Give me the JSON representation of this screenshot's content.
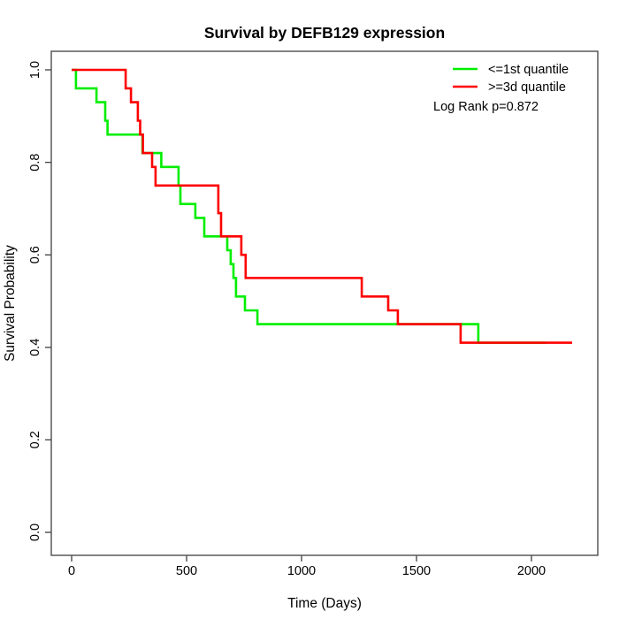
{
  "chart_data": {
    "type": "line",
    "subtype": "kaplan_meier_step",
    "title": "Survival by DEFB129 expression",
    "xlabel": "Time (Days)",
    "ylabel": "Survival Probability",
    "xlim": [
      0,
      2200
    ],
    "ylim": [
      0.0,
      1.0
    ],
    "grid": false,
    "xticks": [
      0,
      500,
      1000,
      1500,
      2000
    ],
    "xtick_labels": [
      "0",
      "500",
      "1000",
      "1500",
      "2000"
    ],
    "yticks": [
      0.0,
      0.2,
      0.4,
      0.6,
      0.8,
      1.0
    ],
    "ytick_labels": [
      "0.0",
      "0.2",
      "0.4",
      "0.6",
      "0.8",
      "1.0"
    ],
    "legend_position": "top-right",
    "legend": {
      "entries": [
        {
          "label": "<=1st quantile",
          "color": "#00ee00"
        },
        {
          "label": ">=3d quantile",
          "color": "#ff0000"
        }
      ]
    },
    "annotation": "Log Rank p=0.872",
    "series": [
      {
        "name": "<=1st quantile",
        "color": "#00ee00",
        "end_time": 2065,
        "steps": [
          [
            0,
            1.0
          ],
          [
            19,
            0.96
          ],
          [
            108,
            0.93
          ],
          [
            146,
            0.89
          ],
          [
            156,
            0.86
          ],
          [
            308,
            0.82
          ],
          [
            390,
            0.79
          ],
          [
            465,
            0.75
          ],
          [
            473,
            0.71
          ],
          [
            538,
            0.68
          ],
          [
            577,
            0.64
          ],
          [
            677,
            0.61
          ],
          [
            692,
            0.58
          ],
          [
            704,
            0.55
          ],
          [
            715,
            0.51
          ],
          [
            754,
            0.48
          ],
          [
            808,
            0.45
          ],
          [
            1769,
            0.41
          ]
        ]
      },
      {
        "name": ">=3d quantile",
        "color": "#ff0000",
        "end_time": 2177,
        "steps": [
          [
            0,
            1.0
          ],
          [
            235,
            0.96
          ],
          [
            258,
            0.93
          ],
          [
            288,
            0.89
          ],
          [
            298,
            0.86
          ],
          [
            310,
            0.82
          ],
          [
            350,
            0.79
          ],
          [
            365,
            0.75
          ],
          [
            638,
            0.69
          ],
          [
            650,
            0.64
          ],
          [
            738,
            0.6
          ],
          [
            757,
            0.55
          ],
          [
            1262,
            0.51
          ],
          [
            1377,
            0.48
          ],
          [
            1419,
            0.45
          ],
          [
            1692,
            0.41
          ]
        ]
      }
    ]
  }
}
